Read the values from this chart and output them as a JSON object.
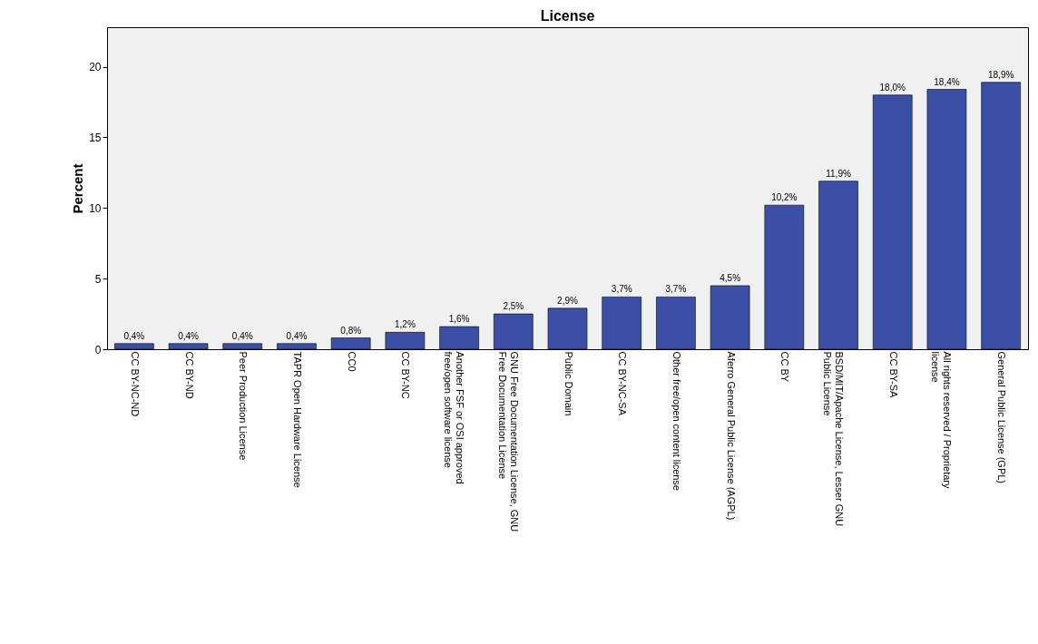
{
  "chart_data": {
    "type": "bar",
    "title": "License",
    "ylabel": "Percent",
    "categories": [
      "CC BY-NC-ND",
      "CC BY-ND",
      "Peer Production License",
      "TAPR Open Hardware License",
      "CC0",
      "CC BY-NC",
      "Another FSF or OSI approved free/open software license",
      "GNU Free Documentation License, GNU Free Documentation License",
      "Public Domain",
      "CC BY-NC-SA",
      "Other free/open content license",
      "Aferro General Public License (AGPL)",
      "CC BY",
      "BSD/MIT/Apache License, Lesser GNU Public License",
      "CC BY-SA",
      "All rights reserved / Proprietary license",
      "General Public License (GPL)"
    ],
    "values": [
      0.4,
      0.4,
      0.4,
      0.4,
      0.8,
      1.2,
      1.6,
      2.5,
      2.9,
      3.7,
      3.7,
      4.5,
      10.2,
      11.9,
      18.0,
      18.4,
      18.9
    ],
    "value_labels": [
      "0,4%",
      "0,4%",
      "0,4%",
      "0,4%",
      "0,8%",
      "1,2%",
      "1,6%",
      "2,5%",
      "2,9%",
      "3,7%",
      "3,7%",
      "4,5%",
      "10,2%",
      "11,9%",
      "18,0%",
      "18,4%",
      "18,9%"
    ],
    "color": "#3a4fa5",
    "ylim": [
      0,
      22.8
    ],
    "yticks": [
      0,
      5,
      10,
      15,
      20
    ],
    "grid": false
  }
}
